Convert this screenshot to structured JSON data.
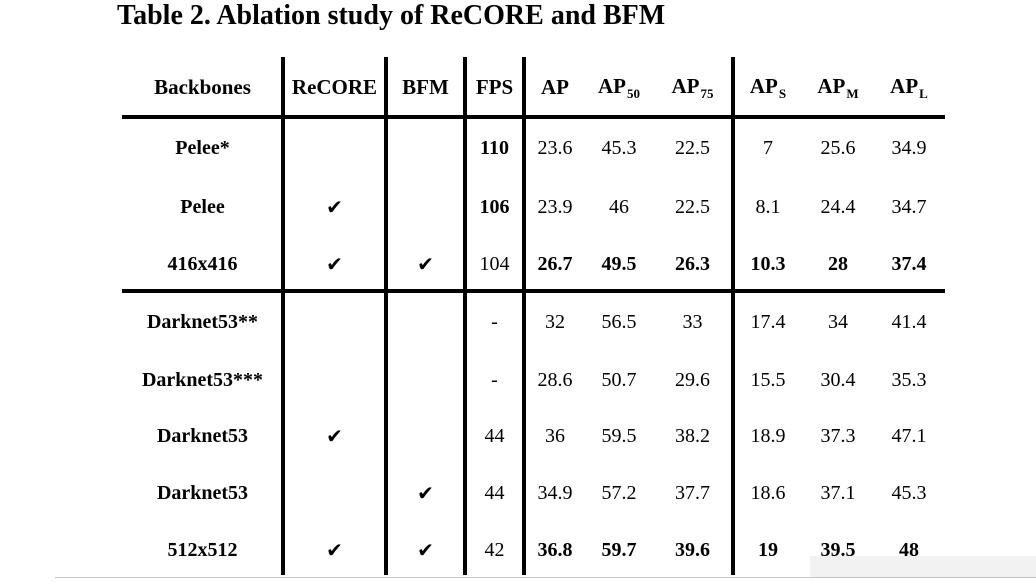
{
  "title": "Table 2. Ablation study of ReCORE and BFM",
  "table": {
    "header": {
      "backbones": "Backbones",
      "recore": "ReCORE",
      "bfm": "BFM",
      "fps": "FPS",
      "ap": "AP",
      "ap50": {
        "base": "AP",
        "sub": "50"
      },
      "ap75": {
        "base": "AP",
        "sub": "75"
      },
      "ap_s": {
        "base": "AP",
        "sub": "S"
      },
      "ap_m": {
        "base": "AP",
        "sub": "M"
      },
      "ap_l": {
        "base": "AP",
        "sub": "L"
      }
    },
    "rows": [
      {
        "backbone": "Pelee*",
        "recore": "",
        "bfm": "",
        "fps": "110",
        "ap": "23.6",
        "ap50": "45.3",
        "ap75": "22.5",
        "ap_s": "7",
        "ap_m": "25.6",
        "ap_l": "34.9"
      },
      {
        "backbone": "Pelee",
        "recore": "✔",
        "bfm": "",
        "fps": "106",
        "ap": "23.9",
        "ap50": "46",
        "ap75": "22.5",
        "ap_s": "8.1",
        "ap_m": "24.4",
        "ap_l": "34.7"
      },
      {
        "backbone": "416x416",
        "recore": "✔",
        "bfm": "✔",
        "fps": "104",
        "ap": "26.7",
        "ap50": "49.5",
        "ap75": "26.3",
        "ap_s": "10.3",
        "ap_m": "28",
        "ap_l": "37.4"
      },
      {
        "backbone": "Darknet53**",
        "recore": "",
        "bfm": "",
        "fps": "-",
        "ap": "32",
        "ap50": "56.5",
        "ap75": "33",
        "ap_s": "17.4",
        "ap_m": "34",
        "ap_l": "41.4"
      },
      {
        "backbone": "Darknet53***",
        "recore": "",
        "bfm": "",
        "fps": "-",
        "ap": "28.6",
        "ap50": "50.7",
        "ap75": "29.6",
        "ap_s": "15.5",
        "ap_m": "30.4",
        "ap_l": "35.3"
      },
      {
        "backbone": "Darknet53",
        "recore": "✔",
        "bfm": "",
        "fps": "44",
        "ap": "36",
        "ap50": "59.5",
        "ap75": "38.2",
        "ap_s": "18.9",
        "ap_m": "37.3",
        "ap_l": "47.1"
      },
      {
        "backbone": "Darknet53",
        "recore": "",
        "bfm": "✔",
        "fps": "44",
        "ap": "34.9",
        "ap50": "57.2",
        "ap75": "37.7",
        "ap_s": "18.6",
        "ap_m": "37.1",
        "ap_l": "45.3"
      },
      {
        "backbone": "512x512",
        "recore": "✔",
        "bfm": "✔",
        "fps": "42",
        "ap": "36.8",
        "ap50": "59.7",
        "ap75": "39.6",
        "ap_s": "19",
        "ap_m": "39.5",
        "ap_l": "48"
      }
    ]
  },
  "colors": {
    "text": "#000000",
    "rule": "#000000",
    "background": "#ffffff",
    "faint_line": "#adadad",
    "overlay": "#f0f0f0"
  }
}
